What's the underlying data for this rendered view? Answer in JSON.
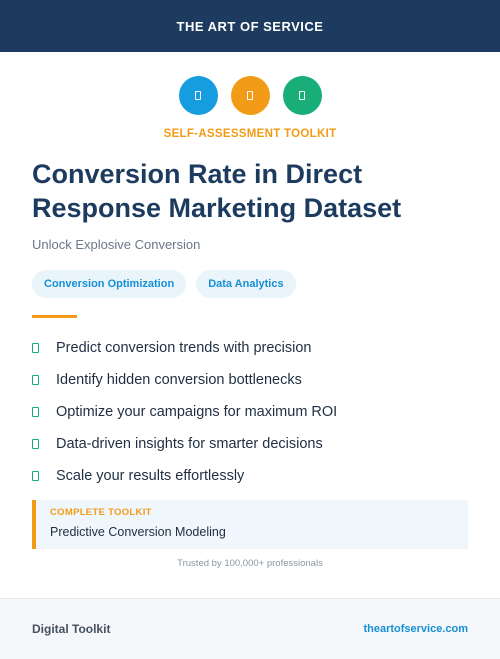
{
  "header": {
    "title": "THE ART OF SERVICE"
  },
  "icons": [
    {
      "name": "document-icon",
      "color": "#159de0"
    },
    {
      "name": "document-icon",
      "color": "#f29b16"
    },
    {
      "name": "document-icon",
      "color": "#19ad79"
    }
  ],
  "hero": {
    "eyebrow": "SELF-ASSESSMENT TOOLKIT",
    "title": "Conversion Rate in Direct Response Marketing Dataset",
    "subtitle": "Unlock Explosive Conversion"
  },
  "tags": [
    "Conversion Optimization",
    "Data Analytics"
  ],
  "features": [
    "Predict conversion trends with precision",
    "Identify hidden conversion bottlenecks",
    "Optimize your campaigns for maximum ROI",
    "Data-driven insights for smarter decisions",
    "Scale your results effortlessly"
  ],
  "callout": {
    "label": "COMPLETE TOOLKIT",
    "value": "Predictive Conversion Modeling"
  },
  "trusted": "Trusted by 100,000+ professionals",
  "footer": {
    "left": "Digital Toolkit",
    "right": "theartofservice.com"
  },
  "colors": {
    "navy": "#1d3b5f",
    "accent_orange": "#f29b16",
    "accent_blue": "#159de0",
    "accent_green": "#19ad79"
  }
}
